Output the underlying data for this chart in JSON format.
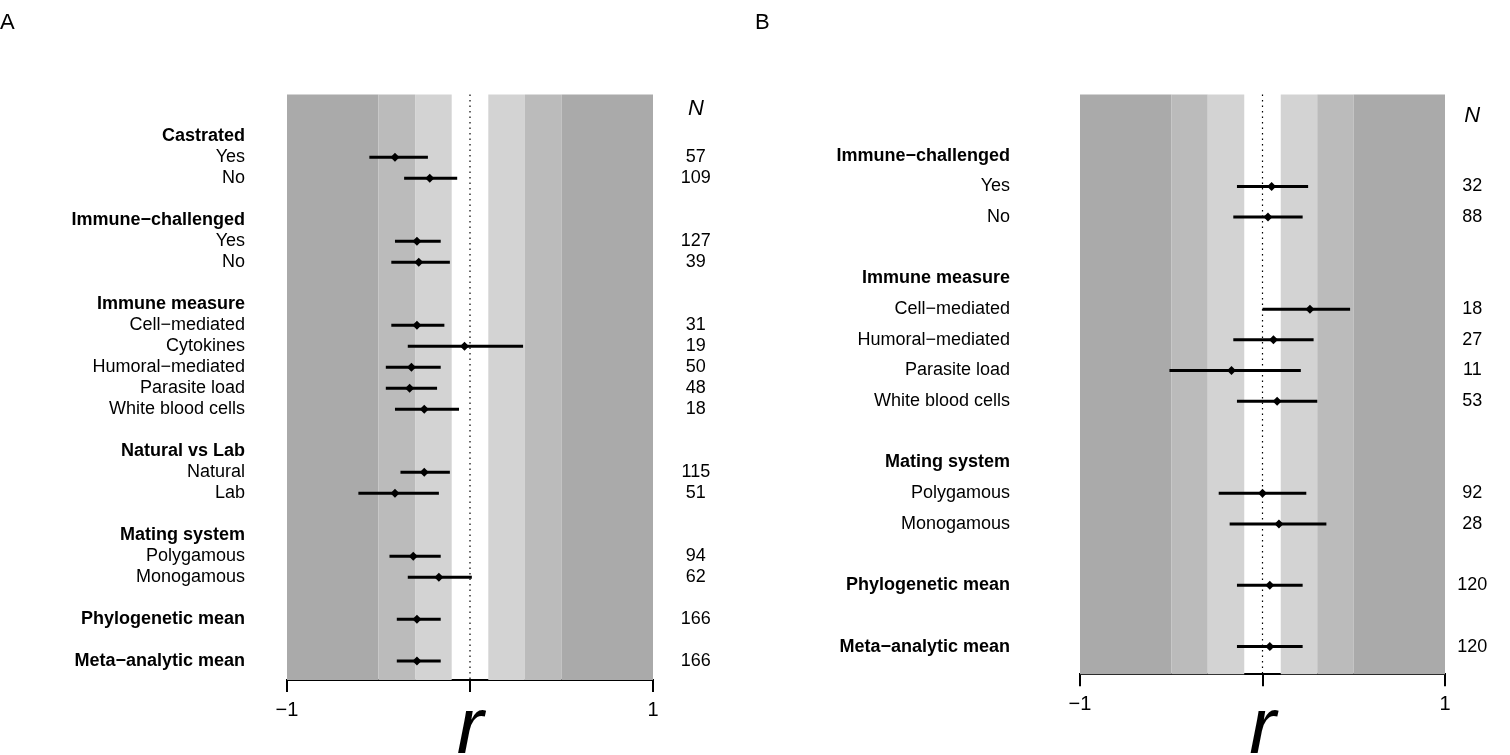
{
  "chart_data": [
    {
      "type": "scatter",
      "title": "A",
      "xlabel": "r",
      "orientation": "horizontal",
      "marker": "diamond",
      "color": "#000000",
      "legend": false,
      "grid": false,
      "categories": [
        "Castrated",
        "Yes",
        "No",
        null,
        "Immune−challenged",
        "Yes",
        "No",
        null,
        "Immune measure",
        "Cell−mediated",
        "Cytokines",
        "Humoral−mediated",
        "Parasite load",
        "White blood cells",
        null,
        "Natural vs Lab",
        "Natural",
        "Lab",
        null,
        "Mating system",
        "Polygamous",
        "Monogamous",
        null,
        "Phylogenetic mean",
        null,
        "Meta−analytic mean"
      ],
      "values": [
        null,
        -0.41,
        -0.22,
        null,
        null,
        -0.29,
        -0.28,
        null,
        null,
        -0.29,
        -0.03,
        -0.32,
        -0.33,
        -0.25,
        null,
        null,
        -0.25,
        -0.41,
        null,
        null,
        -0.31,
        -0.17,
        null,
        -0.29,
        null,
        -0.29
      ],
      "errors": [
        null,
        [
          -0.55,
          -0.23
        ],
        [
          -0.36,
          -0.07
        ],
        null,
        null,
        [
          -0.41,
          -0.16
        ],
        [
          -0.43,
          -0.11
        ],
        null,
        null,
        [
          -0.43,
          -0.14
        ],
        [
          -0.34,
          0.29
        ],
        [
          -0.46,
          -0.16
        ],
        [
          -0.46,
          -0.18
        ],
        [
          -0.41,
          -0.06
        ],
        null,
        null,
        [
          -0.38,
          -0.11
        ],
        [
          -0.61,
          -0.17
        ],
        null,
        null,
        [
          -0.44,
          -0.16
        ],
        [
          -0.34,
          0.01
        ],
        null,
        [
          -0.4,
          -0.16
        ],
        null,
        [
          -0.4,
          -0.16
        ]
      ],
      "annotations": [
        "N",
        "57",
        "109",
        "127",
        "39",
        "31",
        "19",
        "50",
        "48",
        "18",
        "115",
        "51",
        "94",
        "62",
        "166",
        "166"
      ],
      "xlim": [
        -1,
        1
      ],
      "xticks": [
        {
          "value": -1,
          "label": "−1"
        },
        {
          "value": 0,
          "label": null
        },
        {
          "value": 1,
          "label": "1"
        }
      ],
      "bands": [
        {
          "axis": "x",
          "from": -1,
          "to": -0.5,
          "color": "#aaaaaa"
        },
        {
          "axis": "x",
          "from": -0.5,
          "to": -0.3,
          "color": "#bbbbbb"
        },
        {
          "axis": "x",
          "from": -0.3,
          "to": -0.1,
          "color": "#d3d3d3"
        },
        {
          "axis": "x",
          "from": 0.1,
          "to": 0.3,
          "color": "#d3d3d3"
        },
        {
          "axis": "x",
          "from": 0.3,
          "to": 0.5,
          "color": "#bbbbbb"
        },
        {
          "axis": "x",
          "from": 0.5,
          "to": 1,
          "color": "#aaaaaa"
        }
      ],
      "ref_lines": [
        {
          "axis": "x",
          "value": 0,
          "color": "#000000",
          "line_style": "dotted"
        }
      ]
    },
    {
      "type": "scatter",
      "title": "B",
      "xlabel": "r",
      "orientation": "horizontal",
      "marker": "diamond",
      "color": "#000000",
      "legend": false,
      "grid": false,
      "categories": [
        "Immune−challenged",
        "Yes",
        "No",
        null,
        "Immune measure",
        "Cell−mediated",
        "Humoral−mediated",
        "Parasite load",
        "White blood cells",
        null,
        "Mating system",
        "Polygamous",
        "Monogamous",
        null,
        "Phylogenetic mean",
        null,
        "Meta−analytic mean"
      ],
      "values": [
        null,
        0.05,
        0.03,
        null,
        null,
        0.26,
        0.06,
        -0.17,
        0.08,
        null,
        null,
        0.0,
        0.09,
        null,
        0.04,
        null,
        0.04
      ],
      "errors": [
        null,
        [
          -0.14,
          0.25
        ],
        [
          -0.16,
          0.22
        ],
        null,
        null,
        [
          0.0,
          0.48
        ],
        [
          -0.16,
          0.28
        ],
        [
          -0.51,
          0.21
        ],
        [
          -0.14,
          0.3
        ],
        null,
        null,
        [
          -0.24,
          0.24
        ],
        [
          -0.18,
          0.35
        ],
        null,
        [
          -0.14,
          0.22
        ],
        null,
        [
          -0.14,
          0.22
        ]
      ],
      "annotations": [
        "N",
        "32",
        "88",
        "18",
        "27",
        "11",
        "53",
        "92",
        "28",
        "120",
        "120"
      ],
      "xlim": [
        -1,
        1
      ],
      "xticks": [
        {
          "value": -1,
          "label": "−1"
        },
        {
          "value": 0,
          "label": null
        },
        {
          "value": 1,
          "label": "1"
        }
      ],
      "bands": [
        {
          "axis": "x",
          "from": -1,
          "to": -0.5,
          "color": "#aaaaaa"
        },
        {
          "axis": "x",
          "from": -0.5,
          "to": -0.3,
          "color": "#bbbbbb"
        },
        {
          "axis": "x",
          "from": -0.3,
          "to": -0.1,
          "color": "#d3d3d3"
        },
        {
          "axis": "x",
          "from": 0.1,
          "to": 0.3,
          "color": "#d3d3d3"
        },
        {
          "axis": "x",
          "from": 0.3,
          "to": 0.5,
          "color": "#bbbbbb"
        },
        {
          "axis": "x",
          "from": 0.5,
          "to": 1,
          "color": "#aaaaaa"
        }
      ],
      "ref_lines": [
        {
          "axis": "x",
          "value": 0,
          "color": "#000000",
          "line_style": "dotted"
        }
      ]
    }
  ]
}
